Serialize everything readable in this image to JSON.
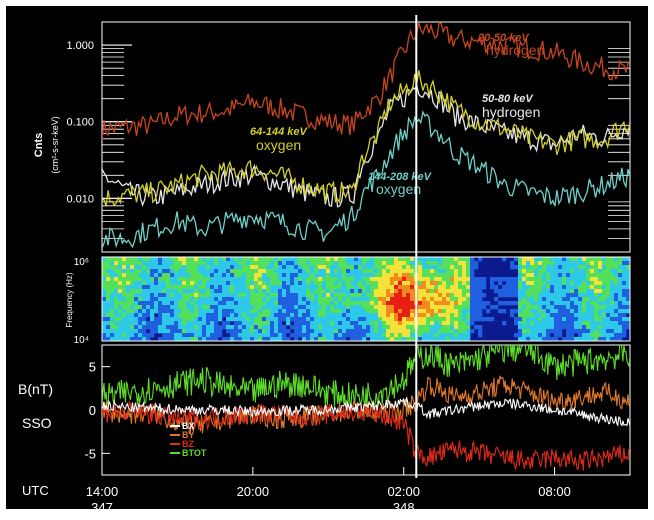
{
  "colors": {
    "background": "#000000",
    "frame": "#ffffff",
    "hydrogen_low": "#c8461e",
    "hydrogen_high": "#e6e6e6",
    "oxygen_low": "#d2cf2a",
    "oxygen_high": "#6fd0c8",
    "event_line": "#ffffff",
    "bx": "#ffffff",
    "by": "#e0782a",
    "bz": "#e02a1a",
    "btot": "#5edc2a"
  },
  "chart_data": [
    {
      "type": "line",
      "panel": "ion-flux",
      "y_scale": "log",
      "ylabel": "Cnts",
      "ylabel_units": "(cm²-s-sr-keV)",
      "ylim": [
        0.002,
        2
      ],
      "y_ticks": [
        "1.000",
        "0.100",
        "0.010"
      ],
      "y_tick_values": [
        1,
        0.1,
        0.01
      ],
      "x_unit": "hours since 14:00 UTC day 347",
      "xlim": [
        0,
        21
      ],
      "event_marker_x": 12.5,
      "series": [
        {
          "name": "20-50 keV hydrogen",
          "energy": "20-50 keV",
          "species": "hydrogen",
          "color_key": "hydrogen_low",
          "x": [
            0,
            1,
            2,
            3,
            4,
            5,
            6,
            7,
            8,
            9,
            10,
            11,
            11.5,
            12,
            12.5,
            13,
            14,
            15,
            16,
            17,
            18,
            19,
            20,
            21
          ],
          "values": [
            0.08,
            0.085,
            0.09,
            0.12,
            0.13,
            0.14,
            0.18,
            0.15,
            0.12,
            0.1,
            0.09,
            0.2,
            0.4,
            0.8,
            1.5,
            1.6,
            1.2,
            1.1,
            1.0,
            0.9,
            0.8,
            0.6,
            0.5,
            0.45
          ]
        },
        {
          "name": "50-80 keV hydrogen",
          "energy": "50-80 keV",
          "species": "hydrogen",
          "color_key": "hydrogen_high",
          "x": [
            0,
            1,
            2,
            3,
            4,
            5,
            6,
            7,
            8,
            9,
            10,
            11,
            11.5,
            12,
            12.5,
            13,
            14,
            15,
            16,
            17,
            18,
            19,
            20,
            21
          ],
          "values": [
            0.02,
            0.012,
            0.01,
            0.012,
            0.015,
            0.018,
            0.02,
            0.016,
            0.012,
            0.01,
            0.011,
            0.06,
            0.15,
            0.2,
            0.3,
            0.25,
            0.12,
            0.09,
            0.07,
            0.06,
            0.05,
            0.07,
            0.06,
            0.09
          ]
        },
        {
          "name": "64-144 keV oxygen",
          "energy": "64-144 keV",
          "species": "oxygen",
          "color_key": "oxygen_low",
          "x": [
            0,
            1,
            2,
            3,
            4,
            5,
            6,
            7,
            8,
            9,
            10,
            11,
            11.5,
            12,
            12.5,
            13,
            14,
            15,
            16,
            17,
            18,
            19,
            20,
            21
          ],
          "values": [
            0.01,
            0.011,
            0.012,
            0.015,
            0.02,
            0.022,
            0.025,
            0.02,
            0.015,
            0.012,
            0.012,
            0.07,
            0.18,
            0.25,
            0.35,
            0.3,
            0.15,
            0.1,
            0.08,
            0.06,
            0.05,
            0.06,
            0.06,
            0.1
          ]
        },
        {
          "name": "144-208 keV oxygen",
          "energy": "144-208 keV",
          "species": "oxygen",
          "color_key": "oxygen_high",
          "x": [
            0,
            1,
            2,
            3,
            4,
            5,
            6,
            7,
            8,
            9,
            10,
            11,
            11.5,
            12,
            12.5,
            13,
            14,
            15,
            16,
            17,
            18,
            19,
            20,
            21
          ],
          "values": [
            0.003,
            0.003,
            0.004,
            0.005,
            0.004,
            0.005,
            0.006,
            0.005,
            0.004,
            0.0035,
            0.006,
            0.02,
            0.04,
            0.07,
            0.11,
            0.09,
            0.04,
            0.025,
            0.015,
            0.012,
            0.01,
            0.012,
            0.015,
            0.02
          ]
        }
      ]
    },
    {
      "type": "heatmap",
      "panel": "wave-spectrogram",
      "ylabel": "Frequency (Hz)",
      "y_scale": "log",
      "ylim": [
        10000,
        1000000
      ],
      "y_ticks": [
        "10⁶",
        "10⁴"
      ],
      "x_unit": "hours since 14:00 UTC day 347",
      "xlim": [
        0,
        21
      ],
      "colormap": [
        "#0b1a8c",
        "#1f5fe0",
        "#2ec8e8",
        "#54e05a",
        "#f2e23a",
        "#f28a1e",
        "#e81e14"
      ]
    },
    {
      "type": "line",
      "panel": "magnetic-field",
      "ylabel": "B(nT)",
      "ylabel2": "SSO",
      "ylim": [
        -7.5,
        7.5
      ],
      "y_ticks": [
        "5",
        "0",
        "-5"
      ],
      "y_tick_values": [
        5,
        0,
        -5
      ],
      "x_unit": "hours since 14:00 UTC day 347",
      "xlim": [
        0,
        21
      ],
      "x_ticks": [
        {
          "x": 0,
          "label": "14:00"
        },
        {
          "x": 6,
          "label": "20:00"
        },
        {
          "x": 12,
          "label": "02:00"
        },
        {
          "x": 18,
          "label": "08:00"
        }
      ],
      "day_labels": [
        {
          "x": 0,
          "label": "347"
        },
        {
          "x": 12,
          "label": "348"
        }
      ],
      "x_axis_label": "UTC",
      "series": [
        {
          "name": "BX",
          "color_key": "bx",
          "x": [
            0,
            1,
            2,
            3,
            4,
            5,
            6,
            7,
            8,
            9,
            10,
            11,
            12,
            12.5,
            13,
            14,
            15,
            16,
            17,
            18,
            19,
            20,
            21
          ],
          "values": [
            0.5,
            0.3,
            0.2,
            0.1,
            0,
            0,
            -0.2,
            -0.1,
            0,
            0.1,
            0.3,
            0.5,
            1,
            0.5,
            -0.5,
            0,
            0.5,
            0.8,
            0.5,
            0,
            -0.5,
            -1,
            -1.5
          ]
        },
        {
          "name": "BY",
          "color_key": "by",
          "x": [
            0,
            1,
            2,
            3,
            4,
            5,
            6,
            7,
            8,
            9,
            10,
            11,
            12,
            12.5,
            13,
            14,
            15,
            16,
            17,
            18,
            19,
            20,
            21
          ],
          "values": [
            -0.2,
            -0.5,
            -0.3,
            -1.5,
            -1.8,
            -1,
            -0.5,
            -1,
            -0.8,
            -0.5,
            0,
            -0.5,
            0,
            1,
            3,
            1.5,
            2,
            3,
            2,
            1,
            1.5,
            2,
            1
          ]
        },
        {
          "name": "BZ",
          "color_key": "bz",
          "x": [
            0,
            1,
            2,
            3,
            4,
            5,
            6,
            7,
            8,
            9,
            10,
            11,
            12,
            12.5,
            13,
            14,
            15,
            16,
            17,
            18,
            19,
            20,
            21
          ],
          "values": [
            -0.3,
            -0.2,
            -0.5,
            -1,
            -1,
            -0.7,
            -0.5,
            -0.5,
            -0.8,
            -0.5,
            -0.2,
            -0.5,
            -1.5,
            -5,
            -5.5,
            -4.5,
            -5,
            -5.5,
            -6,
            -5.5,
            -6,
            -5.5,
            -5
          ]
        },
        {
          "name": "BTOT",
          "color_key": "btot",
          "x": [
            0,
            1,
            2,
            3,
            4,
            5,
            6,
            7,
            8,
            9,
            10,
            11,
            12,
            12.5,
            13,
            14,
            15,
            16,
            17,
            18,
            19,
            20,
            21
          ],
          "values": [
            1.5,
            2,
            2.5,
            3,
            3.5,
            2.5,
            2,
            3,
            3,
            2,
            1.5,
            2,
            3.5,
            6,
            6.5,
            5,
            6,
            7,
            7,
            5,
            5.5,
            6,
            6.5
          ]
        }
      ]
    }
  ],
  "annotations": {
    "h1_energy": "20-50 keV",
    "h1_species": "hydrogen",
    "h2_energy": "50-80 keV",
    "h2_species": "hydrogen",
    "o1_energy": "64-144 keV",
    "o1_species": "oxygen",
    "o2_energy": "144-208 keV",
    "o2_species": "oxygen"
  },
  "legend": [
    "BX",
    "BY",
    "BZ",
    "BTOT"
  ]
}
